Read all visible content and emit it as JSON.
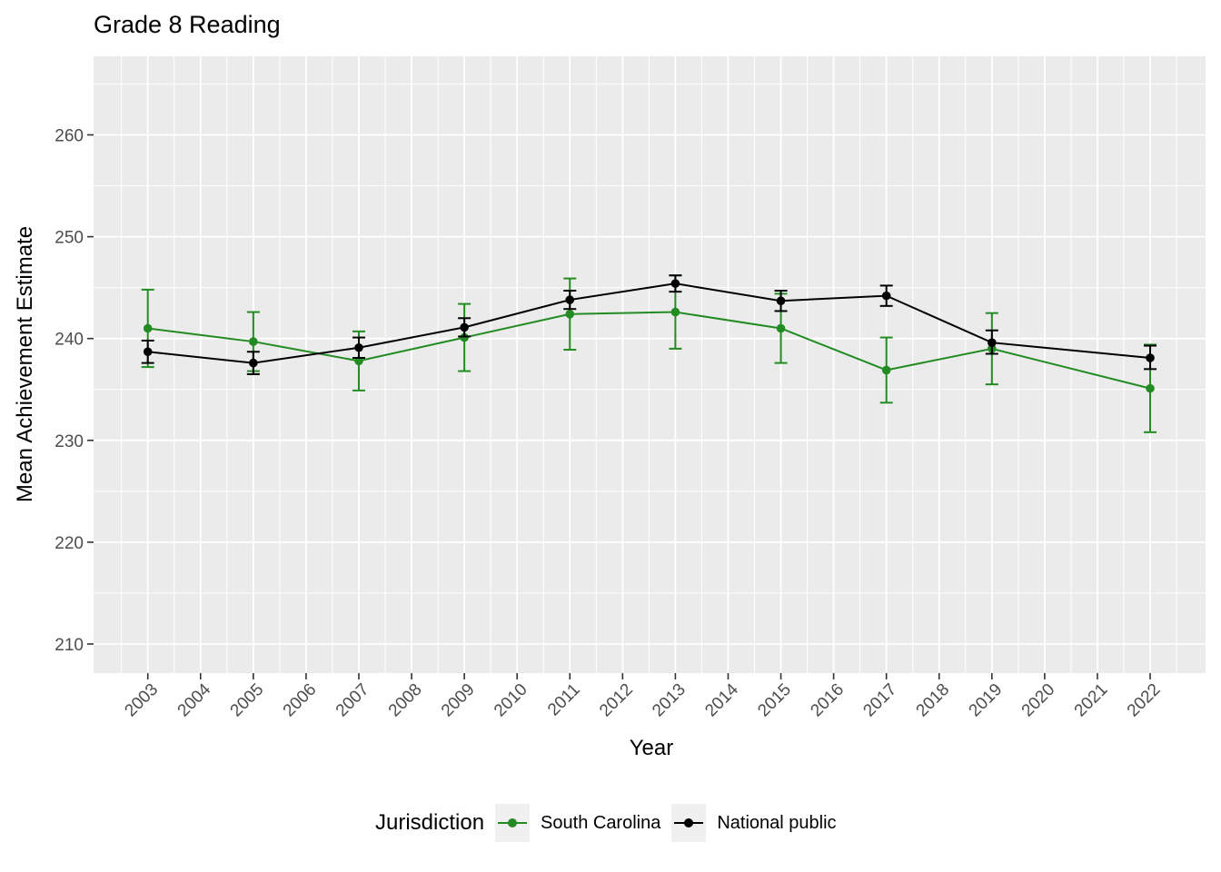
{
  "chart_data": {
    "type": "line",
    "title": "Grade 8 Reading",
    "xlabel": "Year",
    "ylabel": "Mean Achievement Estimate",
    "x_tick_labels": [
      "2003",
      "2004",
      "2005",
      "2006",
      "2007",
      "2008",
      "2009",
      "2010",
      "2011",
      "2012",
      "2013",
      "2014",
      "2015",
      "2016",
      "2017",
      "2018",
      "2019",
      "2020",
      "2021",
      "2022"
    ],
    "y_tick_labels": [
      "210",
      "220",
      "230",
      "240",
      "250",
      "260"
    ],
    "xlim": [
      2002,
      2023
    ],
    "ylim": [
      207,
      268
    ],
    "grid": "on",
    "panel_background": "#EBEBEB",
    "gridline_color": "#FFFFFF",
    "axis_text_color": "#4D4D4D",
    "tick_mark_color": "#333333",
    "legend": {
      "title": "Jurisdiction",
      "position": "bottom",
      "key_background": "#F0F0F0"
    },
    "series": [
      {
        "name": "South Carolina",
        "color": "#228B22",
        "marker": "circle",
        "error_bars": true,
        "x": [
          2003,
          2005,
          2007,
          2009,
          2011,
          2013,
          2015,
          2017,
          2019,
          2022
        ],
        "y": [
          241.0,
          239.7,
          237.8,
          240.1,
          242.4,
          242.6,
          241.0,
          236.9,
          239.0,
          235.1
        ],
        "y_low": [
          237.2,
          236.8,
          234.9,
          236.8,
          238.9,
          239.0,
          237.6,
          233.7,
          235.5,
          230.8
        ],
        "y_high": [
          244.8,
          242.6,
          240.7,
          243.4,
          245.9,
          246.2,
          244.4,
          240.1,
          242.5,
          239.4
        ]
      },
      {
        "name": "National public",
        "color": "#000000",
        "marker": "circle",
        "error_bars": true,
        "x": [
          2003,
          2005,
          2007,
          2009,
          2011,
          2013,
          2015,
          2017,
          2019,
          2022
        ],
        "y": [
          238.7,
          237.6,
          239.1,
          241.1,
          243.8,
          245.4,
          243.7,
          244.2,
          239.6,
          238.1
        ],
        "y_low": [
          237.6,
          236.5,
          238.1,
          240.2,
          242.9,
          244.6,
          242.7,
          243.2,
          238.5,
          237.0
        ],
        "y_high": [
          239.8,
          238.7,
          240.1,
          242.0,
          244.7,
          246.2,
          244.7,
          245.2,
          240.8,
          239.3
        ]
      }
    ]
  }
}
